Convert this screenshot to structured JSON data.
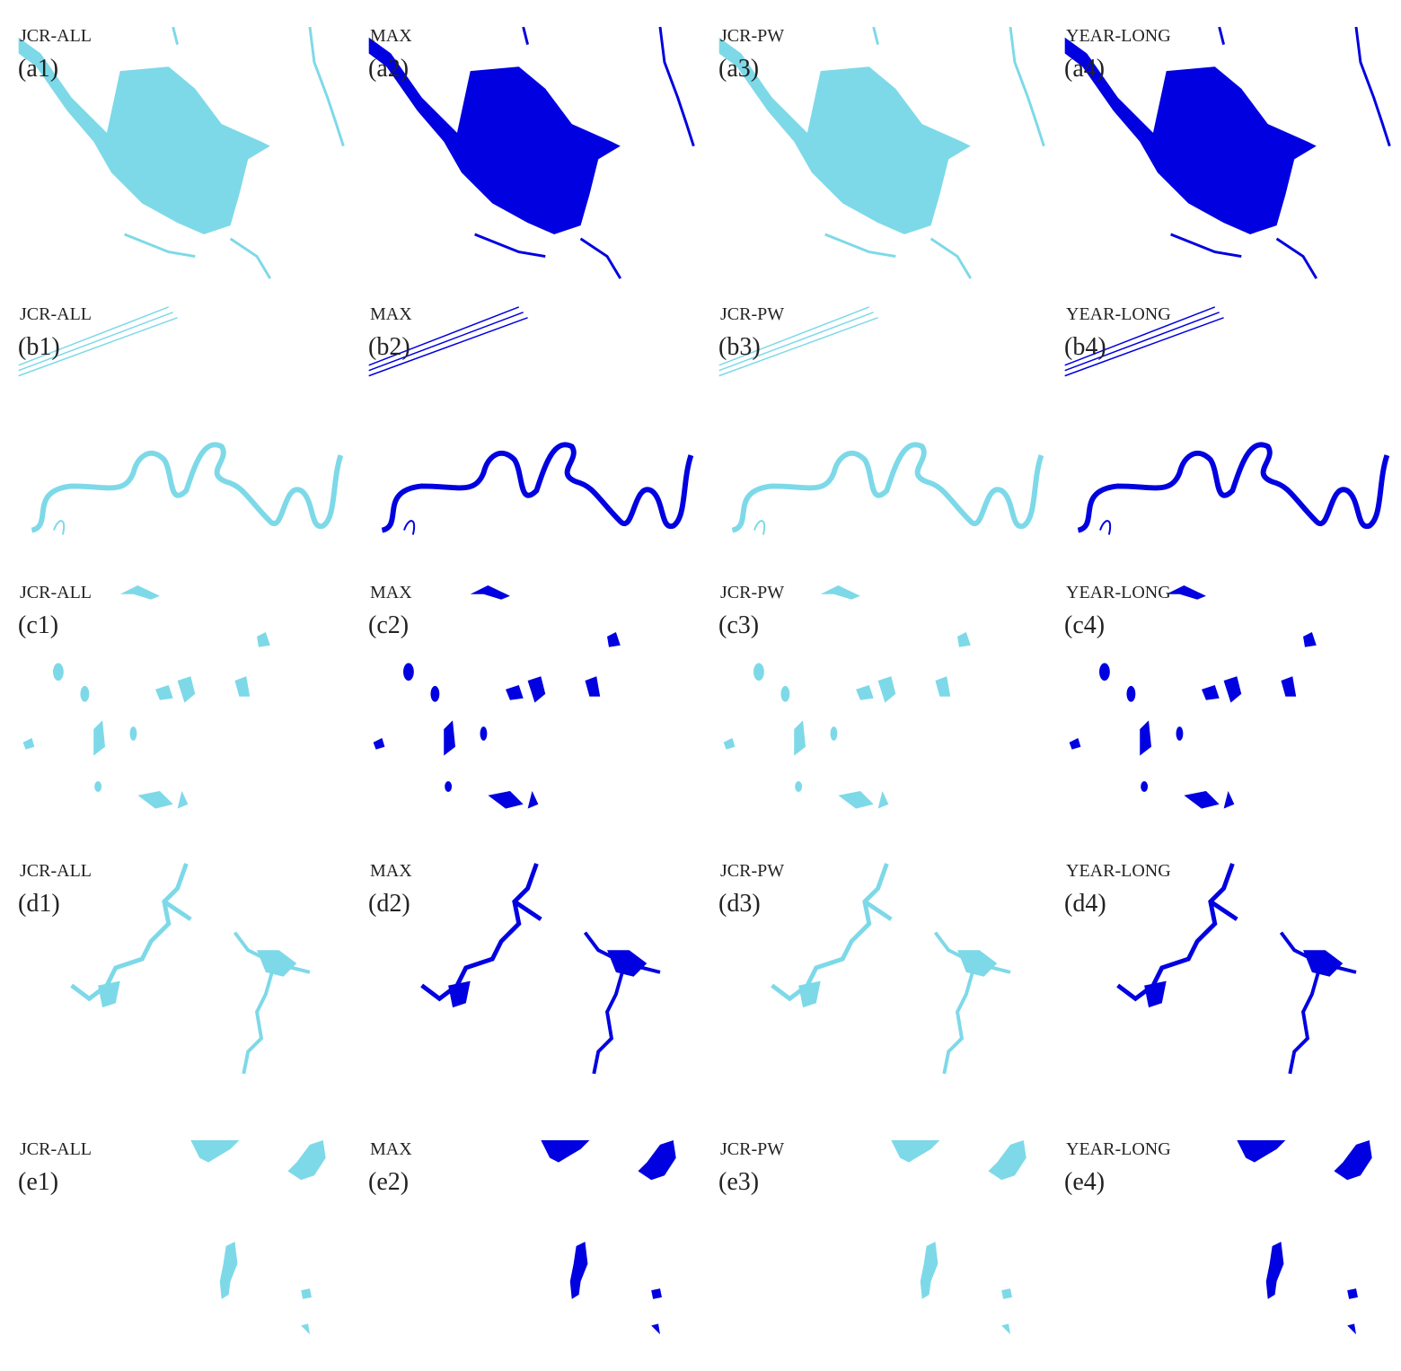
{
  "rows": [
    {
      "panels": [
        {
          "method": "JCR-ALL",
          "label": "(a1)"
        },
        {
          "method": "MAX",
          "label": "(a2)"
        },
        {
          "method": "JCR-PW",
          "label": "(a3)"
        },
        {
          "method": "YEAR-LONG",
          "label": "(a4)"
        }
      ]
    },
    {
      "panels": [
        {
          "method": "JCR-ALL",
          "label": "(b1)"
        },
        {
          "method": "MAX",
          "label": "(b2)"
        },
        {
          "method": "JCR-PW",
          "label": "(b3)"
        },
        {
          "method": "YEAR-LONG",
          "label": "(b4)"
        }
      ]
    },
    {
      "panels": [
        {
          "method": "JCR-ALL",
          "label": "(c1)"
        },
        {
          "method": "MAX",
          "label": "(c2)"
        },
        {
          "method": "JCR-PW",
          "label": "(c3)"
        },
        {
          "method": "YEAR-LONG",
          "label": "(c4)"
        }
      ]
    },
    {
      "panels": [
        {
          "method": "JCR-ALL",
          "label": "(d1)"
        },
        {
          "method": "MAX",
          "label": "(d2)"
        },
        {
          "method": "JCR-PW",
          "label": "(d3)"
        },
        {
          "method": "YEAR-LONG",
          "label": "(d4)"
        }
      ]
    },
    {
      "panels": [
        {
          "method": "JCR-ALL",
          "label": "(e1)"
        },
        {
          "method": "MAX",
          "label": "(e2)"
        },
        {
          "method": "JCR-PW",
          "label": "(e3)"
        },
        {
          "method": "YEAR-LONG",
          "label": "(e4)"
        }
      ]
    }
  ]
}
